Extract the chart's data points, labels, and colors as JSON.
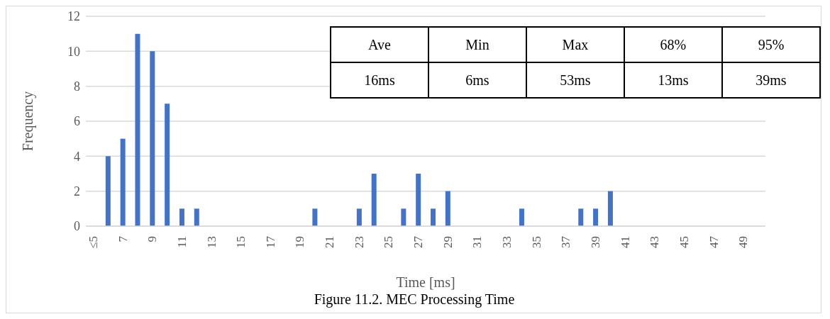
{
  "chart_data": {
    "type": "bar",
    "xlabel": "Time [ms]",
    "ylabel": "Frequency",
    "categories": [
      "≤5",
      null,
      "7",
      null,
      "9",
      null,
      "11",
      null,
      "13",
      null,
      "15",
      null,
      "17",
      null,
      "19",
      null,
      "21",
      null,
      "23",
      null,
      "25",
      null,
      "27",
      null,
      "29",
      null,
      "31",
      null,
      "33",
      null,
      "35",
      null,
      "37",
      null,
      "39",
      null,
      "41",
      null,
      "43",
      null,
      "45",
      null,
      "47",
      null,
      "49",
      null
    ],
    "values": [
      0,
      4,
      5,
      11,
      10,
      7,
      1,
      1,
      0,
      0,
      0,
      0,
      0,
      0,
      0,
      1,
      0,
      0,
      1,
      3,
      0,
      1,
      3,
      1,
      2,
      0,
      0,
      0,
      0,
      1,
      0,
      0,
      0,
      1,
      1,
      2,
      0,
      0,
      0,
      0,
      0,
      0,
      0,
      0,
      0,
      0
    ],
    "color": "#4472c4",
    "ylim": [
      0,
      12
    ],
    "yticks": [
      0,
      2,
      4,
      6,
      8,
      10,
      12
    ],
    "grid": "y",
    "legend": false,
    "annotations": [
      "Ave",
      "Min",
      "Max",
      "68%",
      "95%",
      "16ms",
      "6ms",
      "53ms",
      "13ms",
      "39ms",
      "Figure 11.2. MEC Processing Time"
    ]
  }
}
